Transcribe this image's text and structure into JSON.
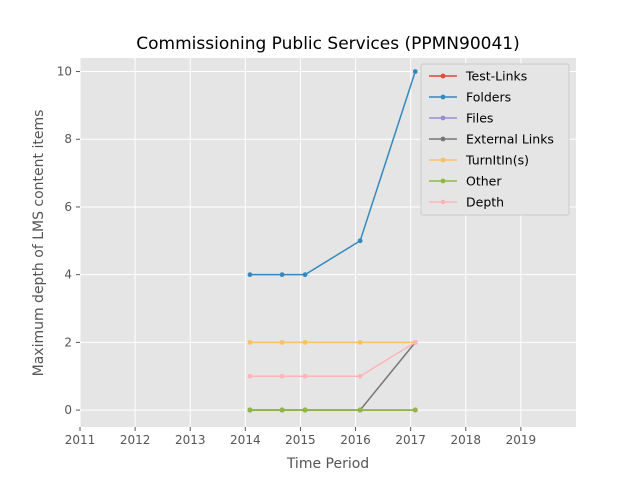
{
  "chart_data": {
    "type": "line",
    "title": "Commissioning Public Services (PPMN90041)",
    "xlabel": "Time Period",
    "ylabel": "Maximum depth of LMS content items",
    "xlim": [
      2011,
      2020
    ],
    "ylim": [
      -0.5,
      10.4
    ],
    "xticks": [
      "2011",
      "2012",
      "2013",
      "2014",
      "2015",
      "2016",
      "2017",
      "2018",
      "2019"
    ],
    "yticks": [
      "0",
      "2",
      "4",
      "6",
      "8",
      "10"
    ],
    "grid": true,
    "legend_position": "top-right",
    "x": [
      "2014-02",
      "2014-09",
      "2015-02",
      "2016-02",
      "2017-02"
    ],
    "series": [
      {
        "name": "Test-Links",
        "color": "#E24A33",
        "values": [
          0,
          0,
          0,
          0,
          0
        ]
      },
      {
        "name": "Folders",
        "color": "#348ABD",
        "values": [
          4,
          4,
          4,
          5,
          10
        ]
      },
      {
        "name": "Files",
        "color": "#988ED5",
        "values": [
          0,
          0,
          0,
          0,
          0
        ]
      },
      {
        "name": "External Links",
        "color": "#777777",
        "values": [
          0,
          0,
          0,
          0,
          2
        ]
      },
      {
        "name": "TurnItIn(s)",
        "color": "#FBC15E",
        "values": [
          2,
          2,
          2,
          2,
          2
        ]
      },
      {
        "name": "Other",
        "color": "#8EBA42",
        "values": [
          0,
          0,
          0,
          0,
          0
        ]
      },
      {
        "name": "Depth",
        "color": "#FFB5B8",
        "values": [
          1,
          1,
          1,
          1,
          2
        ]
      }
    ]
  }
}
